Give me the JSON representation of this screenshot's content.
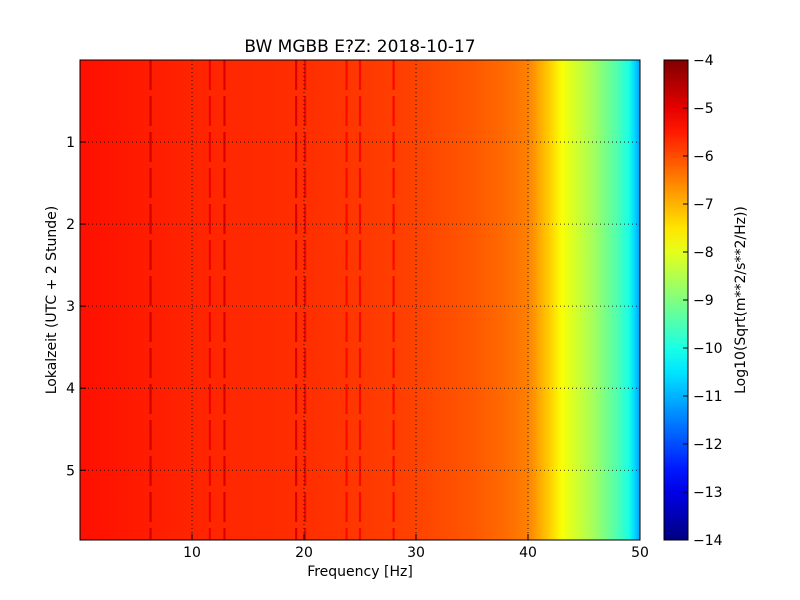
{
  "chart_data": {
    "type": "heatmap",
    "title": "BW MGBB E?Z: 2018-10-17",
    "xlabel": "Frequency [Hz]",
    "ylabel": "Lokalzeit (UTC + 2 Stunde)",
    "xlim": [
      0,
      50
    ],
    "ylim": [
      5.85,
      0.0
    ],
    "x_ticks": [
      10,
      20,
      30,
      40,
      50
    ],
    "y_ticks": [
      1,
      2,
      3,
      4,
      5
    ],
    "grid": true,
    "grid_style": "dotted",
    "colormap": "jet",
    "colorbar": {
      "label": "Log10(Sqrt(m**2/s**2/Hz))",
      "range": [
        -14,
        -4
      ],
      "ticks": [
        -4,
        -5,
        -6,
        -7,
        -8,
        -9,
        -10,
        -11,
        -12,
        -13,
        -14
      ]
    },
    "level_profile": {
      "frequency_hz": [
        0,
        5,
        10,
        20,
        30,
        35,
        38,
        40,
        41,
        42,
        43,
        44,
        45,
        46,
        47,
        48,
        49,
        49.5,
        50
      ],
      "log10_amplitude": [
        -5.4,
        -5.5,
        -5.6,
        -5.7,
        -5.9,
        -6.1,
        -6.3,
        -6.5,
        -6.9,
        -7.3,
        -7.8,
        -8.1,
        -8.4,
        -8.7,
        -9.1,
        -9.5,
        -10.0,
        -10.6,
        -11.2
      ]
    },
    "spectral_lines": [
      {
        "frequency_hz": 6.3,
        "log10_amplitude": -4.8
      },
      {
        "frequency_hz": 11.6,
        "log10_amplitude": -5.1
      },
      {
        "frequency_hz": 12.9,
        "log10_amplitude": -4.9
      },
      {
        "frequency_hz": 19.3,
        "log10_amplitude": -4.9
      },
      {
        "frequency_hz": 20.1,
        "log10_amplitude": -5.2
      },
      {
        "frequency_hz": 23.8,
        "log10_amplitude": -5.3
      },
      {
        "frequency_hz": 25.0,
        "log10_amplitude": -5.3
      },
      {
        "frequency_hz": 28.0,
        "log10_amplitude": -5.3
      }
    ]
  }
}
